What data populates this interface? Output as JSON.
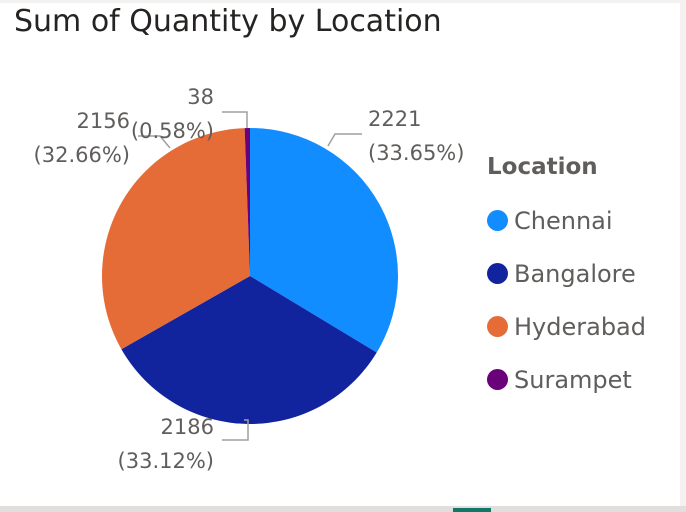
{
  "chart_data": {
    "type": "pie",
    "title": "Sum of Quantity by Location",
    "legend_title": "Location",
    "legend_position": "right",
    "slices": [
      {
        "name": "Chennai",
        "value": 2221,
        "percent_label": "(33.65%)",
        "color": "#118DFF"
      },
      {
        "name": "Bangalore",
        "value": 2186,
        "percent_label": "(33.12%)",
        "color": "#12239E"
      },
      {
        "name": "Hyderabad",
        "value": 2156,
        "percent_label": "(32.66%)",
        "color": "#E66C37"
      },
      {
        "name": "Surampet",
        "value": 38,
        "percent_label": "(0.58%)",
        "color": "#6B007B"
      }
    ]
  }
}
